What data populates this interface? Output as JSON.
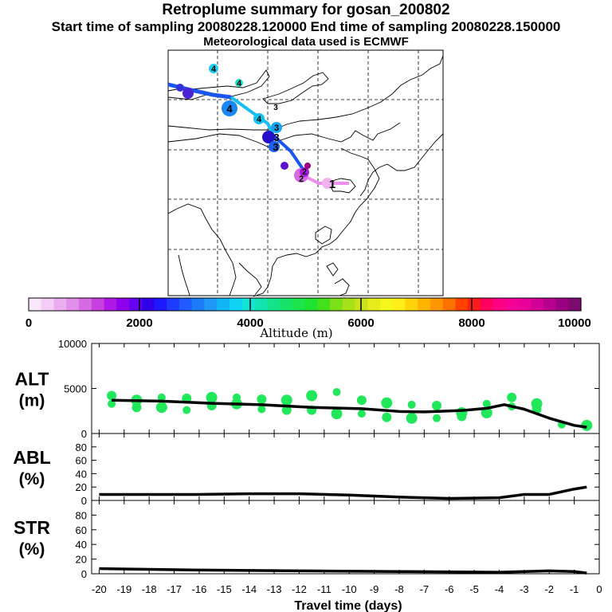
{
  "header": {
    "title": "Retroplume summary for gosan_200802",
    "sampling": "Start time of sampling 20080228.120000     End time of sampling 20080228.150000",
    "met": "Meteorological data used is ECMWF"
  },
  "map": {
    "path_labels": [
      "4",
      "4",
      "4",
      "4",
      "3",
      "3",
      "3",
      "3",
      "2",
      "2",
      "1"
    ]
  },
  "colorbar": {
    "ticks": [
      "0",
      "2000",
      "4000",
      "6000",
      "8000",
      "10000"
    ],
    "label": "Altitude (m)",
    "colors": [
      "#fbe7fb",
      "#f4cdf6",
      "#eaaef0",
      "#e08ee9",
      "#d56ae3",
      "#c640df",
      "#ad18e6",
      "#8e00ee",
      "#6800f2",
      "#3000e8",
      "#1f17ff",
      "#1e3cff",
      "#1f5bff",
      "#1c7bf7",
      "#1f98f7",
      "#10b6f5",
      "#0ed3f4",
      "#12e5d7",
      "#12e3b2",
      "#14e38c",
      "#19e46a",
      "#1be44c",
      "#1ee230",
      "#42e119",
      "#7be119",
      "#a8e11a",
      "#c9e41c",
      "#e7ec1c",
      "#f5f71c",
      "#ffef16",
      "#ffd30a",
      "#ffb400",
      "#ff9600",
      "#ff7200",
      "#ff4200",
      "#ff1a1a",
      "#ff0060",
      "#fe0083",
      "#f50097",
      "#e80098",
      "#d30096",
      "#b8008e",
      "#9c0082",
      "#7c0b70"
    ],
    "colors_note": "sampled altitude palette"
  },
  "chart_data": [
    {
      "type": "line",
      "panel": "ALT",
      "ylabel": "ALT\n(m)",
      "ylim": [
        0,
        10000
      ],
      "yticks": [
        "0",
        "5000",
        "10000"
      ],
      "x": [
        -19.5,
        -17.5,
        -15.5,
        -13.5,
        -11.5,
        -9.5,
        -8.0,
        -7.0,
        -5.5,
        -4.5,
        -3.8,
        -3.0,
        -2.0,
        -1.0,
        -0.5
      ],
      "series": [
        {
          "name": "mean altitude",
          "values": [
            3700,
            3600,
            3350,
            3200,
            2900,
            2750,
            2450,
            2400,
            2550,
            2800,
            3200,
            2700,
            1700,
            900,
            700
          ]
        }
      ],
      "scatter_color": "#20e85a",
      "scatter": {
        "x": [
          -19.5,
          -19.5,
          -18.5,
          -18.5,
          -17.5,
          -17.5,
          -16.5,
          -16.5,
          -15.5,
          -15.5,
          -14.5,
          -14.5,
          -13.5,
          -13.5,
          -12.5,
          -12.5,
          -12.5,
          -11.5,
          -11.5,
          -10.5,
          -10.5,
          -9.5,
          -9.5,
          -8.5,
          -8.5,
          -7.5,
          -7.5,
          -6.5,
          -6.5,
          -5.5,
          -5.5,
          -4.5,
          -4.5,
          -3.5,
          -3.5,
          -2.5,
          -2.5,
          -1.5,
          -0.5
        ],
        "values": [
          4200,
          3300,
          3700,
          2900,
          4000,
          2900,
          3900,
          2600,
          4000,
          3100,
          4000,
          3300,
          3800,
          2700,
          3700,
          2600,
          3000,
          4200,
          2600,
          4600,
          2200,
          3700,
          2200,
          3400,
          1800,
          3200,
          1700,
          3100,
          1700,
          2300,
          1900,
          3300,
          2300,
          4000,
          3000,
          3300,
          2700,
          1000,
          900
        ]
      }
    },
    {
      "type": "line",
      "panel": "ABL",
      "ylabel": "ABL\n(%)",
      "ylim": [
        0,
        100
      ],
      "yticks": [
        "0",
        "20",
        "40",
        "60",
        "80"
      ],
      "x": [
        -20,
        -18,
        -16,
        -14,
        -12,
        -10,
        -8,
        -6,
        -4,
        -3,
        -2,
        -1,
        -0.5
      ],
      "series": [
        {
          "name": "ABL fraction",
          "values": [
            9,
            9,
            9,
            10,
            10,
            8,
            5,
            3,
            4,
            9,
            9,
            17,
            20
          ]
        }
      ]
    },
    {
      "type": "line",
      "panel": "STR",
      "ylabel": "STR\n(%)",
      "ylim": [
        0,
        100
      ],
      "yticks": [
        "0",
        "20",
        "40",
        "60",
        "80"
      ],
      "xlabel": "Travel time (days)",
      "xlim": [
        -20.3,
        0
      ],
      "xticks": [
        "-20",
        "-19",
        "-18",
        "-17",
        "-16",
        "-15",
        "-14",
        "-13",
        "-12",
        "-11",
        "-10",
        "-9",
        "-8",
        "-7",
        "-6",
        "-5",
        "-4",
        "-3",
        "-2",
        "-1",
        "0"
      ],
      "x": [
        -20,
        -16,
        -12,
        -8,
        -4,
        -2,
        -1,
        -0.5
      ],
      "series": [
        {
          "name": "stratospheric fraction",
          "values": [
            7,
            5,
            4,
            3,
            2,
            4,
            3,
            1
          ]
        }
      ]
    }
  ]
}
